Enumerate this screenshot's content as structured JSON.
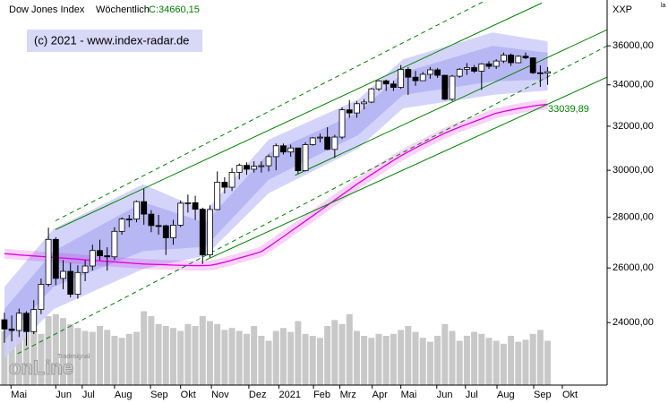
{
  "chart_data": {
    "type": "candlestick",
    "header": {
      "title": "Dow Jones Index",
      "period": "Wöchentlich",
      "close": "C:34660,15"
    },
    "copyright": "(c) 2021 - www.index-radar.de",
    "axis_label": "XXP",
    "corner_label": "la",
    "logo": {
      "small": "Tradesignal",
      "big": "onLine"
    },
    "annotation": "33039,89",
    "log_scale": true,
    "grid": false,
    "up_color": "#ffffff",
    "down_color": "#000000",
    "volume_color": "#c8c8c8",
    "xlim": [
      -0.6,
      82.1
    ],
    "xticks": [
      {
        "value": 0.9,
        "label": "Mai"
      },
      {
        "value": 7.0,
        "label": "Jun"
      },
      {
        "value": 10.6,
        "label": "Jul"
      },
      {
        "value": 15.0,
        "label": "Aug"
      },
      {
        "value": 19.9,
        "label": "Sep"
      },
      {
        "value": 24.0,
        "label": "Okt"
      },
      {
        "value": 28.2,
        "label": "Nov"
      },
      {
        "value": 33.3,
        "label": "Dez"
      },
      {
        "value": 37.4,
        "label": "2021"
      },
      {
        "value": 42.1,
        "label": "Feb"
      },
      {
        "value": 45.7,
        "label": "Mrz"
      },
      {
        "value": 50.1,
        "label": "Apr"
      },
      {
        "value": 54.0,
        "label": "Mai"
      },
      {
        "value": 58.9,
        "label": "Jun"
      },
      {
        "value": 62.8,
        "label": "Jul"
      },
      {
        "value": 67.1,
        "label": "Aug"
      },
      {
        "value": 72.1,
        "label": "Sep"
      },
      {
        "value": 76.0,
        "label": "Okt"
      }
    ],
    "ylim": [
      21900,
      38500
    ],
    "yticks": [
      {
        "value": 24000,
        "label": "24000,00"
      },
      {
        "value": 26000,
        "label": "26000,00"
      },
      {
        "value": 28000,
        "label": "28000,00"
      },
      {
        "value": 30000,
        "label": "30000,00"
      },
      {
        "value": 32000,
        "label": "32000,00"
      },
      {
        "value": 34000,
        "label": "34000,00"
      },
      {
        "value": 36000,
        "label": "36000,00"
      }
    ],
    "open": [
      24100,
      23775,
      23724,
      24331,
      23685,
      24465,
      25383,
      27111,
      25606,
      25871,
      25016,
      25827,
      26075,
      26672,
      26470,
      26428,
      27433,
      27931,
      27930,
      28654,
      28133,
      27666,
      27657,
      27174,
      27682,
      28587,
      28606,
      28335,
      26502,
      28323,
      29479,
      29263,
      29910,
      30218,
      30046,
      30179,
      30200,
      30606,
      31098,
      30814,
      30997,
      29983,
      31148,
      31458,
      31494,
      30932,
      31496,
      32779,
      32628,
      33073,
      33153,
      33800,
      34200,
      34043,
      33875,
      34778,
      34382,
      34208,
      34529,
      34756,
      34480,
      33290,
      34433,
      34786,
      34870,
      34687,
      35061,
      34935,
      35208,
      35515,
      35120,
      35455,
      35369,
      34607,
      34584
    ],
    "high": [
      24350,
      24250,
      24500,
      24400,
      24800,
      25600,
      27580,
      27200,
      26300,
      26200,
      26100,
      26300,
      26900,
      27100,
      26800,
      27600,
      28000,
      28100,
      28700,
      29200,
      28300,
      28100,
      27700,
      27900,
      28700,
      28950,
      28900,
      28400,
      28500,
      29950,
      29700,
      30100,
      30300,
      30350,
      30400,
      30400,
      30700,
      31200,
      31200,
      31150,
      31000,
      31250,
      31500,
      31650,
      31950,
      31600,
      32900,
      33250,
      33200,
      33300,
      33850,
      34250,
      34260,
      34200,
      35000,
      34900,
      34700,
      34650,
      34900,
      34850,
      34500,
      34500,
      34850,
      35100,
      35000,
      35100,
      35200,
      35300,
      35650,
      35600,
      35500,
      35650,
      35400,
      34980,
      34900
    ],
    "low": [
      23300,
      23350,
      23500,
      23200,
      23600,
      24300,
      25300,
      25350,
      25200,
      24900,
      24850,
      25500,
      25900,
      26300,
      25900,
      26300,
      27300,
      27600,
      27800,
      27700,
      27400,
      27300,
      26500,
      26900,
      27600,
      28200,
      27900,
      26150,
      26400,
      28300,
      29000,
      29100,
      29600,
      29800,
      29900,
      29900,
      29950,
      30000,
      30700,
      30600,
      29850,
      29950,
      31100,
      31250,
      30900,
      30550,
      31400,
      32400,
      32400,
      32800,
      33100,
      33700,
      33700,
      33700,
      33800,
      33500,
      33950,
      34200,
      34300,
      34350,
      33250,
      33200,
      34350,
      34500,
      34600,
      33750,
      34800,
      34800,
      35100,
      34950,
      35100,
      35300,
      34550,
      33900,
      34000
    ],
    "close": [
      23775,
      23724,
      24331,
      23685,
      24465,
      25383,
      27111,
      25606,
      25871,
      25016,
      25827,
      26075,
      26672,
      26470,
      26428,
      27433,
      27931,
      27930,
      28654,
      28133,
      27666,
      27657,
      27174,
      27682,
      28587,
      28606,
      28335,
      26502,
      28323,
      29479,
      29263,
      29910,
      30218,
      30046,
      30179,
      30200,
      30606,
      31098,
      30814,
      30997,
      29983,
      31148,
      31458,
      31494,
      30932,
      31496,
      32779,
      32628,
      33073,
      33153,
      33800,
      34200,
      34043,
      33875,
      34778,
      34382,
      34208,
      34529,
      34756,
      34480,
      33290,
      34433,
      34786,
      34870,
      34687,
      35061,
      34935,
      35208,
      35515,
      35120,
      35455,
      35369,
      34607,
      34584,
      34660.15
    ],
    "volume": [
      55,
      58,
      62,
      60,
      57,
      52,
      70,
      72,
      68,
      62,
      58,
      55,
      54,
      60,
      56,
      50,
      48,
      52,
      54,
      75,
      70,
      62,
      60,
      58,
      55,
      62,
      60,
      70,
      65,
      62,
      56,
      58,
      55,
      52,
      60,
      50,
      45,
      55,
      58,
      54,
      65,
      52,
      50,
      48,
      60,
      66,
      62,
      72,
      55,
      50,
      48,
      52,
      50,
      52,
      56,
      60,
      54,
      48,
      44,
      50,
      62,
      55,
      45,
      50,
      54,
      52,
      48,
      45,
      42,
      50,
      44,
      46,
      52,
      56,
      45
    ],
    "ma": {
      "color": "#e000e0",
      "values": [
        26550,
        26530,
        26500,
        26480,
        26460,
        26440,
        26420,
        26400,
        26380,
        26360,
        26340,
        26310,
        26290,
        26270,
        26250,
        26230,
        26210,
        26190,
        26170,
        26150,
        26140,
        26130,
        26120,
        26110,
        26100,
        26095,
        26090,
        26090,
        26100,
        26150,
        26220,
        26300,
        26380,
        26460,
        26540,
        26630,
        26820,
        27020,
        27220,
        27430,
        27640,
        27850,
        28060,
        28280,
        28500,
        28720,
        28940,
        29160,
        29390,
        29600,
        29810,
        30020,
        30230,
        30440,
        30640,
        30820,
        31000,
        31170,
        31340,
        31510,
        31680,
        31820,
        31960,
        32090,
        32220,
        32350,
        32490,
        32620,
        32700,
        32770,
        32840,
        32900,
        32960,
        33010,
        33039.89
      ]
    },
    "bands": [
      {
        "color": "#cdcdfa",
        "x": [
          0,
          6.7,
          18.9,
          27.4,
          36,
          48.2,
          54.3,
          66.5,
          74
        ],
        "upper": [
          25290,
          27530,
          29390,
          28260,
          31380,
          33280,
          35300,
          36710,
          36240
        ],
        "lower": [
          22780,
          24475,
          25960,
          26470,
          29010,
          30970,
          32850,
          33500,
          33720
        ]
      },
      {
        "color": "#b2b2f2",
        "x": [
          0,
          6.7,
          18.9,
          27.4,
          36,
          48.2,
          54.3,
          66.5,
          74
        ],
        "upper": [
          24475,
          26650,
          28630,
          27790,
          30770,
          32640,
          34620,
          36000,
          35630
        ],
        "lower": [
          23380,
          25290,
          26650,
          26820,
          29590,
          31590,
          33500,
          34170,
          34260
        ]
      }
    ],
    "lines": [
      {
        "color": "#008000",
        "dashed": true,
        "x": [
          6.95,
          65.2
        ],
        "values": [
          27860,
          38400
        ]
      },
      {
        "color": "#008000",
        "dashed": false,
        "x": [
          6.95,
          73.2
        ],
        "values": [
          27500,
          38330
        ]
      },
      {
        "color": "#008000",
        "dashed": false,
        "x": [
          39.6,
          82.1
        ],
        "values": [
          29780,
          36860
        ]
      },
      {
        "color": "#008000",
        "dashed": true,
        "x": [
          1.8,
          82.1
        ],
        "values": [
          22930,
          36000
        ]
      },
      {
        "color": "#008000",
        "dashed": false,
        "x": [
          27.4,
          82.1
        ],
        "values": [
          26300,
          34390
        ]
      }
    ]
  }
}
